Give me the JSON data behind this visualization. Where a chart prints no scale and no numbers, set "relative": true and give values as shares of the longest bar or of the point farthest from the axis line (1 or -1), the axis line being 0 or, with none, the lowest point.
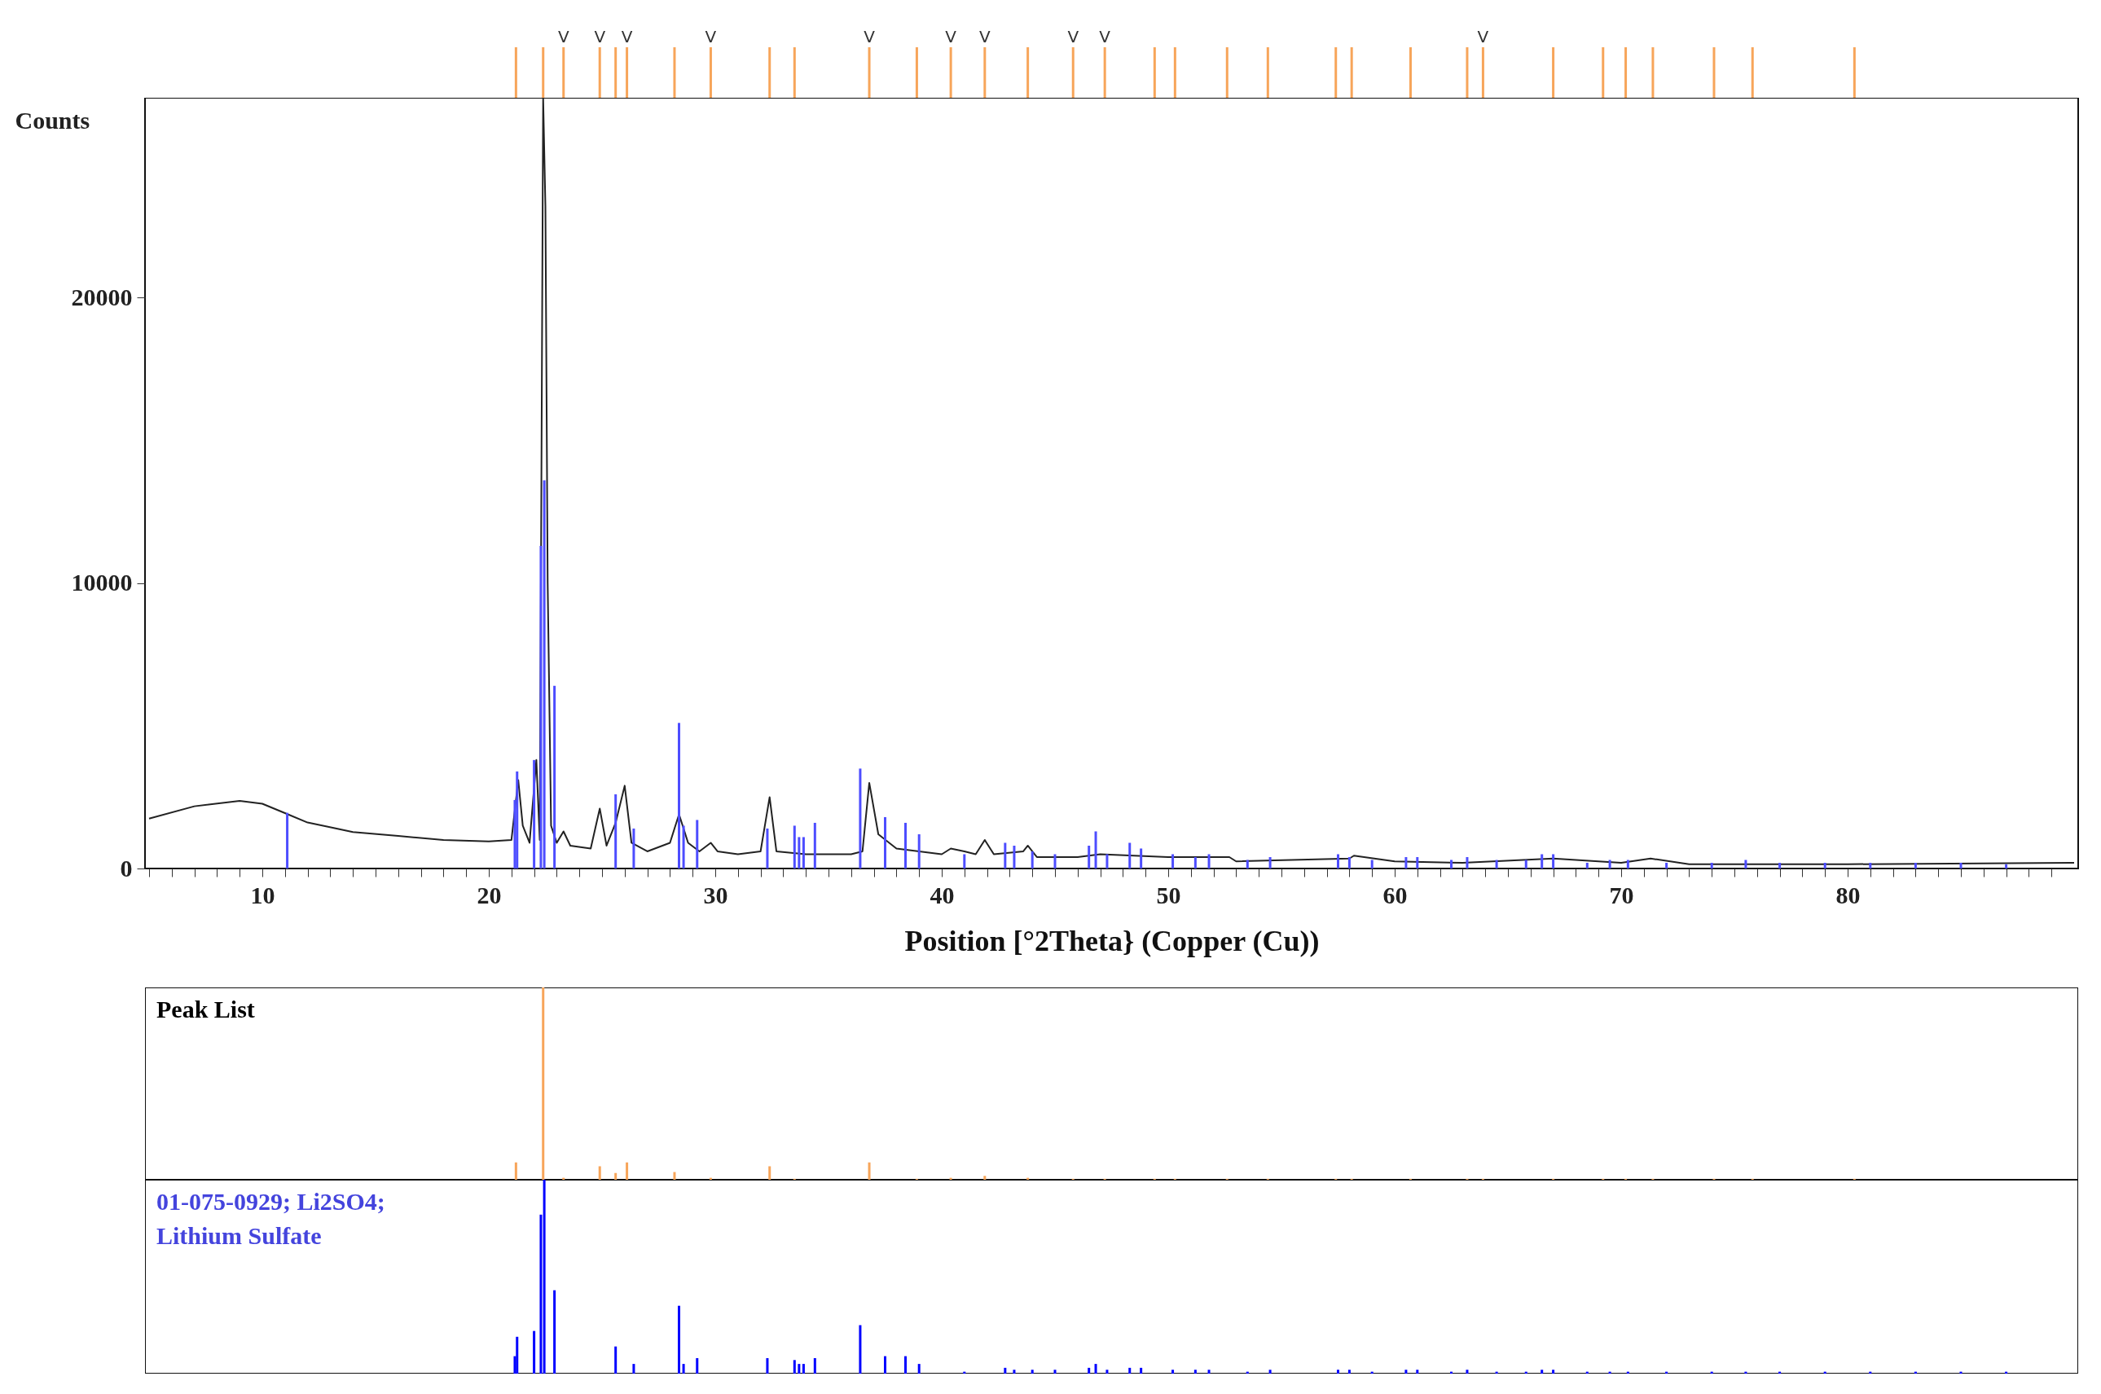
{
  "chart_data": [
    {
      "type": "bar",
      "relative": true,
      "tick_labels": false,
      "xlim": [
        5,
        90
      ],
      "x": [
        21.2,
        22.4,
        23.3,
        24.9,
        25.6,
        26.1,
        28.2,
        29.8,
        32.4,
        33.5,
        36.8,
        38.9,
        40.4,
        41.9,
        43.8,
        45.8,
        47.2,
        49.4,
        50.3,
        52.6,
        54.4,
        57.4,
        58.1,
        60.7,
        63.2,
        63.9,
        67.0,
        69.2,
        70.2,
        71.4,
        74.1,
        75.8,
        80.3
      ],
      "values": [
        1,
        1,
        1,
        1,
        1,
        1,
        1,
        1,
        1,
        1,
        1,
        1,
        1,
        1,
        1,
        1,
        1,
        1,
        1,
        1,
        1,
        1,
        1,
        1,
        1,
        1,
        1,
        1,
        1,
        1,
        1,
        1,
        1
      ],
      "color": "#f7a55a",
      "annotations": [
        {
          "text": "V",
          "x": 23.3,
          "y": 1
        },
        {
          "text": "V",
          "x": 24.9,
          "y": 1
        },
        {
          "text": "V",
          "x": 26.1,
          "y": 1
        },
        {
          "text": "V",
          "x": 29.8,
          "y": 1
        },
        {
          "text": "V",
          "x": 36.8,
          "y": 1
        },
        {
          "text": "V",
          "x": 40.4,
          "y": 1
        },
        {
          "text": "V",
          "x": 41.9,
          "y": 1
        },
        {
          "text": "V",
          "x": 45.8,
          "y": 1
        },
        {
          "text": "V",
          "x": 47.2,
          "y": 1
        },
        {
          "text": "V",
          "x": 63.9,
          "y": 1
        }
      ]
    },
    {
      "type": "line",
      "xlabel": "Position [°2Theta} (Copper (Cu))",
      "ylabel": "Counts",
      "xlim": [
        5,
        90
      ],
      "ylim": [
        0,
        27000
      ],
      "yticks": [
        0,
        10000,
        20000
      ],
      "xticks": [
        {
          "value": 5,
          "label": null
        },
        {
          "value": 6,
          "label": null
        },
        {
          "value": 7,
          "label": null
        },
        {
          "value": 8,
          "label": null
        },
        {
          "value": 9,
          "label": null
        },
        10,
        {
          "value": 11,
          "label": null
        },
        {
          "value": 12,
          "label": null
        },
        {
          "value": 13,
          "label": null
        },
        {
          "value": 14,
          "label": null
        },
        {
          "value": 15,
          "label": null
        },
        {
          "value": 16,
          "label": null
        },
        {
          "value": 17,
          "label": null
        },
        {
          "value": 18,
          "label": null
        },
        {
          "value": 19,
          "label": null
        },
        20,
        {
          "value": 21,
          "label": null
        },
        {
          "value": 22,
          "label": null
        },
        {
          "value": 23,
          "label": null
        },
        {
          "value": 24,
          "label": null
        },
        {
          "value": 25,
          "label": null
        },
        {
          "value": 26,
          "label": null
        },
        {
          "value": 27,
          "label": null
        },
        {
          "value": 28,
          "label": null
        },
        {
          "value": 29,
          "label": null
        },
        30,
        {
          "value": 31,
          "label": null
        },
        {
          "value": 32,
          "label": null
        },
        {
          "value": 33,
          "label": null
        },
        {
          "value": 34,
          "label": null
        },
        {
          "value": 35,
          "label": null
        },
        {
          "value": 36,
          "label": null
        },
        {
          "value": 37,
          "label": null
        },
        {
          "value": 38,
          "label": null
        },
        {
          "value": 39,
          "label": null
        },
        40,
        {
          "value": 41,
          "label": null
        },
        {
          "value": 42,
          "label": null
        },
        {
          "value": 43,
          "label": null
        },
        {
          "value": 44,
          "label": null
        },
        {
          "value": 45,
          "label": null
        },
        {
          "value": 46,
          "label": null
        },
        {
          "value": 47,
          "label": null
        },
        {
          "value": 48,
          "label": null
        },
        {
          "value": 49,
          "label": null
        },
        50,
        {
          "value": 51,
          "label": null
        },
        {
          "value": 52,
          "label": null
        },
        {
          "value": 53,
          "label": null
        },
        {
          "value": 54,
          "label": null
        },
        {
          "value": 55,
          "label": null
        },
        {
          "value": 56,
          "label": null
        },
        {
          "value": 57,
          "label": null
        },
        {
          "value": 58,
          "label": null
        },
        {
          "value": 59,
          "label": null
        },
        60,
        {
          "value": 61,
          "label": null
        },
        {
          "value": 62,
          "label": null
        },
        {
          "value": 63,
          "label": null
        },
        {
          "value": 64,
          "label": null
        },
        {
          "value": 65,
          "label": null
        },
        {
          "value": 66,
          "label": null
        },
        {
          "value": 67,
          "label": null
        },
        {
          "value": 68,
          "label": null
        },
        {
          "value": 69,
          "label": null
        },
        70,
        {
          "value": 71,
          "label": null
        },
        {
          "value": 72,
          "label": null
        },
        {
          "value": 73,
          "label": null
        },
        {
          "value": 74,
          "label": null
        },
        {
          "value": 75,
          "label": null
        },
        {
          "value": 76,
          "label": null
        },
        {
          "value": 77,
          "label": null
        },
        {
          "value": 78,
          "label": null
        },
        {
          "value": 79,
          "label": null
        },
        80,
        {
          "value": 81,
          "label": null
        },
        {
          "value": 82,
          "label": null
        },
        {
          "value": 83,
          "label": null
        },
        {
          "value": 84,
          "label": null
        },
        {
          "value": 85,
          "label": null
        },
        {
          "value": 86,
          "label": null
        },
        {
          "value": 87,
          "label": null
        },
        {
          "value": 88,
          "label": null
        },
        {
          "value": 89,
          "label": null
        }
      ],
      "series": [
        {
          "type": "bar",
          "color": "#4d4dff",
          "x": [
            11.1,
            21.15,
            21.25,
            22.0,
            22.3,
            22.45,
            22.9,
            25.6,
            26.4,
            28.4,
            28.6,
            29.2,
            32.3,
            33.5,
            33.7,
            33.9,
            34.4,
            36.4,
            37.5,
            38.4,
            39.0,
            41.0,
            42.8,
            43.2,
            44.0,
            45.0,
            46.5,
            46.8,
            47.3,
            48.3,
            48.8,
            50.2,
            51.2,
            51.8,
            53.5,
            54.5,
            57.5,
            58.0,
            59.0,
            60.5,
            61.0,
            62.5,
            63.2,
            64.5,
            65.8,
            66.5,
            67.0,
            68.5,
            69.5,
            70.3,
            72.0,
            74.0,
            75.5,
            77.0,
            79.0,
            81.0,
            83.0,
            85.0,
            87.0
          ],
          "values": [
            1950,
            2400,
            3400,
            3800,
            11300,
            13600,
            6400,
            2600,
            1400,
            5100,
            1500,
            1700,
            1400,
            1500,
            1100,
            1100,
            1600,
            3500,
            1800,
            1600,
            1200,
            500,
            900,
            800,
            600,
            500,
            800,
            1300,
            500,
            900,
            700,
            500,
            400,
            500,
            300,
            400,
            500,
            400,
            300,
            400,
            400,
            300,
            400,
            300,
            300,
            500,
            500,
            200,
            300,
            300,
            200,
            200,
            300,
            200,
            200,
            200,
            200,
            200,
            150
          ]
        },
        {
          "type": "line",
          "color": "#222222",
          "x": [
            5,
            7,
            9,
            10,
            11,
            12,
            14,
            16,
            18,
            20,
            21,
            21.3,
            21.5,
            21.8,
            22.1,
            22.25,
            22.4,
            22.5,
            22.6,
            22.75,
            23.0,
            23.3,
            23.6,
            24.5,
            24.9,
            25.2,
            25.6,
            26.0,
            26.3,
            27,
            28,
            28.4,
            28.8,
            29.3,
            29.8,
            30.1,
            31,
            32.0,
            32.4,
            32.7,
            34,
            36,
            36.5,
            36.8,
            37.2,
            38,
            40,
            40.4,
            41,
            41.5,
            41.9,
            42.3,
            43.6,
            43.8,
            44.2,
            46,
            47,
            50,
            52.7,
            53,
            58,
            58.2,
            60,
            63,
            67,
            70,
            71.3,
            73,
            80,
            90
          ],
          "values": [
            1750,
            2180,
            2370,
            2270,
            1940,
            1610,
            1280,
            1140,
            1000,
            950,
            1000,
            3100,
            1500,
            900,
            3800,
            1000,
            27000,
            23200,
            10000,
            1500,
            900,
            1300,
            800,
            700,
            2100,
            800,
            1600,
            2900,
            900,
            600,
            900,
            1900,
            900,
            600,
            900,
            600,
            500,
            600,
            2500,
            600,
            500,
            500,
            600,
            3000,
            1200,
            700,
            500,
            700,
            600,
            500,
            1000,
            500,
            600,
            800,
            400,
            400,
            500,
            400,
            400,
            250,
            350,
            450,
            250,
            200,
            350,
            200,
            350,
            150,
            150,
            200
          ]
        }
      ]
    },
    {
      "type": "bar",
      "relative": true,
      "tick_labels": false,
      "xlim": [
        5,
        90
      ],
      "title": "Peak List",
      "color": "#f7a55a",
      "x": [
        21.2,
        22.4,
        23.3,
        24.9,
        25.6,
        26.1,
        28.2,
        29.8,
        32.4,
        33.5,
        36.8,
        38.9,
        40.4,
        41.9,
        43.8,
        45.8,
        47.2,
        49.4,
        50.3,
        52.6,
        54.4,
        57.4,
        58.1,
        60.7,
        63.2,
        63.9,
        67.0,
        69.2,
        70.2,
        71.4,
        74.1,
        75.8,
        80.3
      ],
      "values": [
        0.09,
        1,
        0.01,
        0.07,
        0.035,
        0.09,
        0.04,
        0.01,
        0.07,
        0.005,
        0.09,
        0.005,
        0.01,
        0.02,
        0.01,
        0.005,
        0.005,
        0.005,
        0.005,
        0.005,
        0.005,
        0.005,
        0.005,
        0.005,
        0.005,
        0.005,
        0.005,
        0.005,
        0.005,
        0.005,
        0.005,
        0.005,
        0.005
      ]
    },
    {
      "type": "bar",
      "relative": true,
      "tick_labels": false,
      "xlim": [
        5,
        90
      ],
      "title": "01-075-0929; Li2SO4; Lithium Sulfate",
      "color": "#0000ff",
      "x": [
        21.15,
        21.25,
        22.0,
        22.3,
        22.45,
        22.9,
        25.6,
        26.4,
        28.4,
        28.6,
        29.2,
        32.3,
        33.5,
        33.7,
        33.9,
        34.4,
        36.4,
        37.5,
        38.4,
        39.0,
        41.0,
        42.8,
        43.2,
        44.0,
        45.0,
        46.5,
        46.8,
        47.3,
        48.3,
        48.8,
        50.2,
        51.2,
        51.8,
        53.5,
        54.5,
        57.5,
        58.0,
        59.0,
        60.5,
        61.0,
        62.5,
        63.2,
        64.5,
        65.8,
        66.5,
        67.0,
        68.5,
        69.5,
        70.3,
        72.0,
        74.0,
        75.5,
        77.0,
        79.0,
        81.0,
        83.0,
        85.0,
        87.0
      ],
      "values": [
        0.09,
        0.19,
        0.22,
        0.82,
        1,
        0.43,
        0.14,
        0.05,
        0.35,
        0.05,
        0.08,
        0.08,
        0.07,
        0.05,
        0.05,
        0.08,
        0.25,
        0.09,
        0.09,
        0.05,
        0.01,
        0.03,
        0.02,
        0.02,
        0.02,
        0.03,
        0.05,
        0.02,
        0.03,
        0.03,
        0.02,
        0.02,
        0.02,
        0.01,
        0.02,
        0.02,
        0.02,
        0.01,
        0.02,
        0.02,
        0.01,
        0.02,
        0.01,
        0.01,
        0.02,
        0.02,
        0.01,
        0.01,
        0.01,
        0.01,
        0.01,
        0.01,
        0.01,
        0.01,
        0.01,
        0.01,
        0.01,
        0.01
      ]
    }
  ]
}
